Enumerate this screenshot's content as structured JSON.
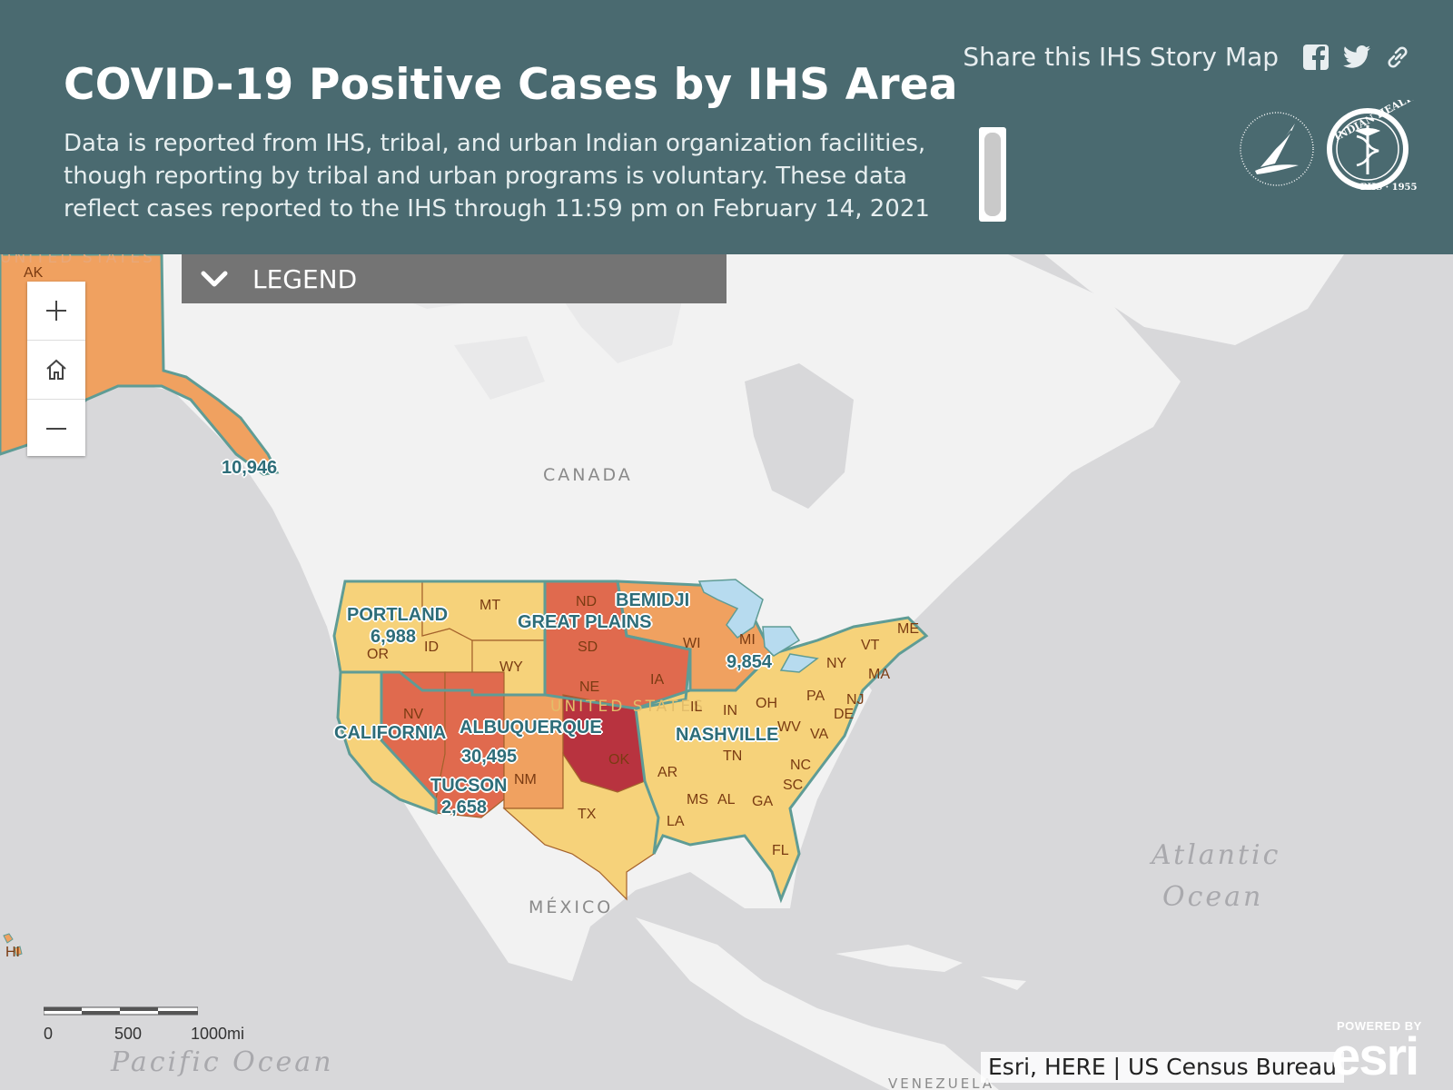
{
  "header": {
    "title": "COVID-19 Positive Cases by IHS Area",
    "subtitle": "Data is reported from IHS, tribal, and urban Indian organization facilities, though reporting by tribal and urban programs is voluntary. These data reflect cases reported to the IHS through 11:59 pm on February 14, 2021",
    "share_label": "Share this IHS Story Map",
    "share_icons": [
      "facebook-icon",
      "twitter-icon",
      "link-icon"
    ],
    "logo_text_1": "INDIAN HEALTH SERVICE",
    "logo_text_2": "PHS · 1955"
  },
  "legend": {
    "label": "LEGEND",
    "icon": "chevron-down-icon"
  },
  "zoom_controls": {
    "icons": [
      "plus-icon",
      "home-icon",
      "minus-icon"
    ]
  },
  "map": {
    "geo_labels": {
      "canada": "CANADA",
      "mexico": "MÉXICO",
      "venezuela": "VENEZUELA",
      "us_faded": "UNITED STATES",
      "us_faded_2": "UNITED STATES"
    },
    "oceans": {
      "atlantic_1": "Atlantic",
      "atlantic_2": "Ocean",
      "pacific": "Pacific Ocean"
    },
    "states": {
      "ak": "AK",
      "hi": "HI",
      "wa": "",
      "or": "OR",
      "id": "ID",
      "mt": "MT",
      "wy": "WY",
      "nd": "ND",
      "sd": "SD",
      "ne": "NE",
      "ia": "IA",
      "nv": "NV",
      "nm": "NM",
      "ok": "OK",
      "tx": "TX",
      "wi": "WI",
      "mi": "MI",
      "il": "IL",
      "in": "IN",
      "oh": "OH",
      "ny": "NY",
      "pa": "PA",
      "vt": "VT",
      "me": "ME",
      "ma": "MA",
      "nj": "NJ",
      "de": "DE",
      "wv": "WV",
      "va": "VA",
      "tn": "TN",
      "nc": "NC",
      "sc": "SC",
      "ar": "AR",
      "ms": "MS",
      "al": "AL",
      "ga": "GA",
      "la": "LA",
      "fl": "FL"
    },
    "areas": {
      "alaska_count": "10,946",
      "portland": "PORTLAND",
      "portland_count": "6,988",
      "great_plains": "GREAT PLAINS",
      "bemidji": "BEMIDJI",
      "bemidji_count": "9,854",
      "california": "CALIFORNIA",
      "albuquerque": "ALBUQUERQUE",
      "albuquerque_count": "30,495",
      "tucson": "TUCSON",
      "tucson_count": "2,658",
      "nashville": "NASHVILLE"
    },
    "fill_colors": {
      "low": "#f6d27a",
      "mid": "#f0a160",
      "high": "#e06a4e",
      "highest": "#b8333f",
      "outline": "#5f9c95",
      "land": "#f2f2f2",
      "water": "#d8d8da",
      "lakes": "#b7dbef"
    }
  },
  "scale_bar": {
    "labels": [
      "0",
      "500",
      "1000mi"
    ]
  },
  "attribution": "Esri, HERE | US Census Bureau",
  "esri_logo": {
    "powered_by": "POWERED BY",
    "name": "esri"
  }
}
